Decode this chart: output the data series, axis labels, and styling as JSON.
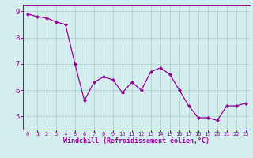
{
  "x": [
    0,
    1,
    2,
    3,
    4,
    5,
    6,
    7,
    8,
    9,
    10,
    11,
    12,
    13,
    14,
    15,
    16,
    17,
    18,
    19,
    20,
    21,
    22,
    23
  ],
  "y": [
    8.9,
    8.8,
    8.75,
    8.6,
    8.5,
    7.0,
    5.6,
    6.3,
    6.5,
    6.4,
    5.9,
    6.3,
    6.0,
    6.7,
    6.85,
    6.6,
    6.0,
    5.4,
    4.95,
    4.95,
    4.85,
    5.4,
    5.4,
    5.5
  ],
  "line_color": "#990099",
  "marker": "D",
  "marker_size": 2.0,
  "bg_color": "#d4eef0",
  "grid_color": "#aacccc",
  "xlabel": "Windchill (Refroidissement éolien,°C)",
  "xlabel_color": "#990099",
  "ylabel_ticks": [
    5,
    6,
    7,
    8,
    9
  ],
  "xlim": [
    -0.5,
    23.5
  ],
  "ylim": [
    4.5,
    9.25
  ],
  "xtick_labels": [
    "0",
    "1",
    "2",
    "3",
    "4",
    "5",
    "6",
    "7",
    "8",
    "9",
    "10",
    "11",
    "12",
    "13",
    "14",
    "15",
    "16",
    "17",
    "18",
    "19",
    "20",
    "21",
    "22",
    "23"
  ],
  "tick_color": "#990099",
  "spine_color": "#990099",
  "font_name": "monospace",
  "tick_fontsize": 5.0,
  "ylabel_fontsize": 6.5,
  "xlabel_fontsize": 6.0
}
